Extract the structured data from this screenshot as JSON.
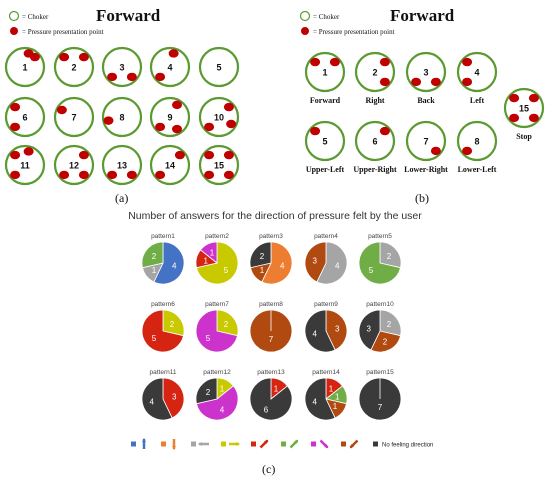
{
  "panel_a": {
    "title": "Forward",
    "legend_choker": "= Choker",
    "legend_point": "= Pressure presentation point",
    "label": "(a)",
    "patterns": [
      {
        "num": "1",
        "points": [
          45,
          15
        ]
      },
      {
        "num": "2",
        "points": [
          45,
          315
        ]
      },
      {
        "num": "3",
        "points": [
          135,
          225
        ]
      },
      {
        "num": "4",
        "points": [
          15,
          225
        ]
      },
      {
        "num": "5",
        "points": []
      },
      {
        "num": "6",
        "points": [
          315,
          225
        ]
      },
      {
        "num": "7",
        "points": [
          300
        ]
      },
      {
        "num": "8",
        "points": [
          255
        ]
      },
      {
        "num": "9",
        "points": [
          30,
          150,
          225
        ]
      },
      {
        "num": "10",
        "points": [
          45,
          120,
          225
        ]
      },
      {
        "num": "11",
        "points": [
          15,
          315,
          225
        ]
      },
      {
        "num": "12",
        "points": [
          45,
          135,
          225
        ]
      },
      {
        "num": "13",
        "points": [
          135,
          225
        ]
      },
      {
        "num": "14",
        "points": [
          45,
          225
        ]
      },
      {
        "num": "15",
        "points": [
          45,
          135,
          225,
          315
        ]
      }
    ]
  },
  "panel_b": {
    "title": "Forward",
    "legend_choker": "= Choker",
    "legend_point": "= Pressure presentation point",
    "label": "(b)",
    "patterns": [
      {
        "num": "1",
        "dir": "Forward",
        "points": [
          45,
          315
        ]
      },
      {
        "num": "2",
        "dir": "Right",
        "points": [
          45,
          135
        ]
      },
      {
        "num": "3",
        "dir": "Back",
        "points": [
          135,
          225
        ]
      },
      {
        "num": "4",
        "dir": "Left",
        "points": [
          225,
          315
        ]
      },
      {
        "num": "5",
        "dir": "Upper-Left",
        "points": [
          315
        ]
      },
      {
        "num": "6",
        "dir": "Upper-Right",
        "points": [
          45
        ]
      },
      {
        "num": "7",
        "dir": "Lower-Right",
        "points": [
          135
        ]
      },
      {
        "num": "8",
        "dir": "Lower-Left",
        "points": [
          225
        ]
      },
      {
        "num": "15",
        "dir": "Stop",
        "points": [
          45,
          135,
          225,
          315
        ]
      }
    ]
  },
  "panel_c": {
    "title": "Number of answers for the direction of pressure felt by the user",
    "label": "(c)",
    "colors": {
      "forward": "#4472c4",
      "right": "#ed7d31",
      "back": "#a5a5a5",
      "left": "#c9c900",
      "upper_left": "#d62412",
      "upper_right": "#70ad47",
      "lower_right": "#cc33cc",
      "lower_left": "#b04a10",
      "none": "#3a3a3a"
    },
    "legend_none_label": "No feeling direction"
  },
  "chart_data": {
    "type": "pie",
    "title": "Number of answers for the direction of pressure felt by the user",
    "categories": [
      "forward",
      "right",
      "back",
      "left",
      "upper_left",
      "upper_right",
      "lower_right",
      "lower_left",
      "none"
    ],
    "pies": [
      {
        "name": "pattern1",
        "slices": [
          {
            "cat": "forward",
            "v": 4
          },
          {
            "cat": "back",
            "v": 1
          },
          {
            "cat": "upper_right",
            "v": 2
          }
        ]
      },
      {
        "name": "pattern2",
        "slices": [
          {
            "cat": "left",
            "v": 5
          },
          {
            "cat": "upper_left",
            "v": 1
          },
          {
            "cat": "lower_right",
            "v": 1
          }
        ]
      },
      {
        "name": "pattern3",
        "slices": [
          {
            "cat": "right",
            "v": 4
          },
          {
            "cat": "lower_left",
            "v": 1
          },
          {
            "cat": "none",
            "v": 2
          }
        ]
      },
      {
        "name": "pattern4",
        "slices": [
          {
            "cat": "back",
            "v": 4
          },
          {
            "cat": "lower_left",
            "v": 3
          }
        ]
      },
      {
        "name": "pattern5",
        "slices": [
          {
            "cat": "back",
            "v": 2
          },
          {
            "cat": "upper_right",
            "v": 5
          }
        ]
      },
      {
        "name": "pattern6",
        "slices": [
          {
            "cat": "left",
            "v": 2
          },
          {
            "cat": "upper_left",
            "v": 5
          }
        ]
      },
      {
        "name": "pattern7",
        "slices": [
          {
            "cat": "left",
            "v": 2
          },
          {
            "cat": "lower_right",
            "v": 5
          }
        ]
      },
      {
        "name": "pattern8",
        "slices": [
          {
            "cat": "lower_left",
            "v": 7
          }
        ]
      },
      {
        "name": "pattern9",
        "slices": [
          {
            "cat": "lower_left",
            "v": 3
          },
          {
            "cat": "none",
            "v": 4
          }
        ]
      },
      {
        "name": "pattern10",
        "slices": [
          {
            "cat": "back",
            "v": 2
          },
          {
            "cat": "lower_left",
            "v": 2
          },
          {
            "cat": "none",
            "v": 3
          }
        ]
      },
      {
        "name": "pattern11",
        "slices": [
          {
            "cat": "upper_left",
            "v": 3
          },
          {
            "cat": "none",
            "v": 4
          }
        ]
      },
      {
        "name": "pattern12",
        "slices": [
          {
            "cat": "left",
            "v": 1
          },
          {
            "cat": "lower_right",
            "v": 4
          },
          {
            "cat": "none",
            "v": 2
          }
        ]
      },
      {
        "name": "pattern13",
        "slices": [
          {
            "cat": "upper_left",
            "v": 1
          },
          {
            "cat": "none",
            "v": 6
          }
        ]
      },
      {
        "name": "pattern14",
        "slices": [
          {
            "cat": "upper_left",
            "v": 1
          },
          {
            "cat": "upper_right",
            "v": 1
          },
          {
            "cat": "lower_left",
            "v": 1
          },
          {
            "cat": "none",
            "v": 4
          }
        ]
      },
      {
        "name": "pattern15",
        "slices": [
          {
            "cat": "none",
            "v": 7
          }
        ]
      }
    ]
  }
}
